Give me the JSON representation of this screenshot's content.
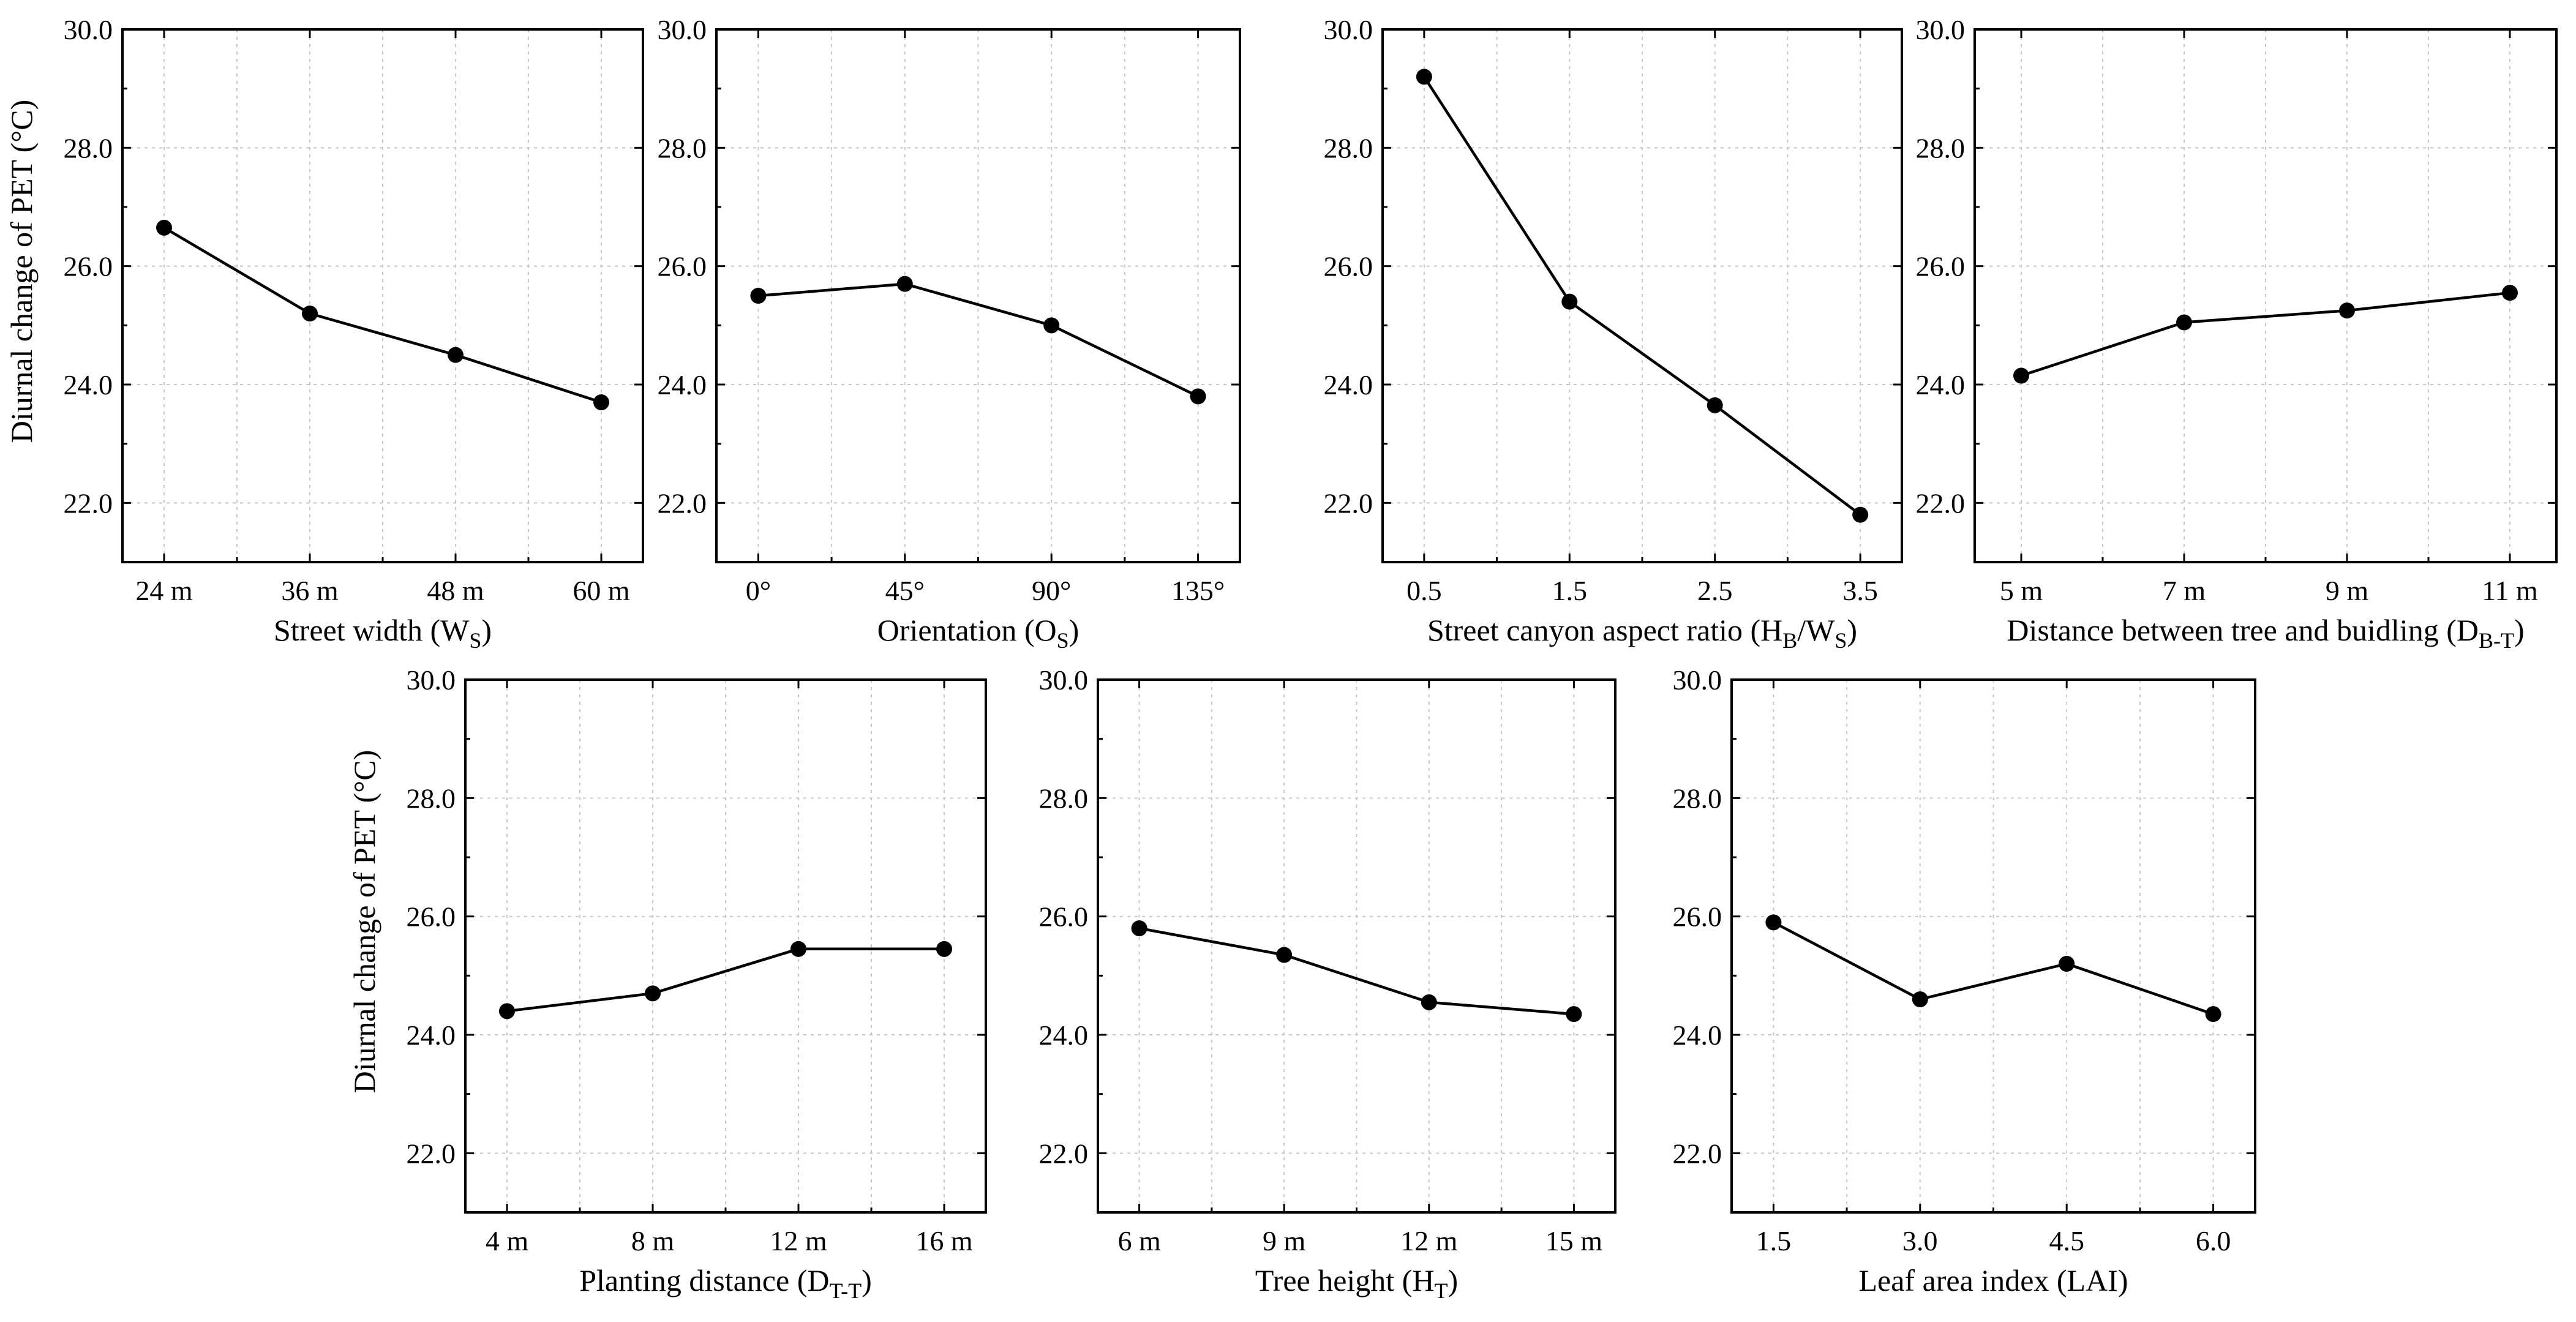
{
  "chart_data": [
    {
      "type": "line",
      "ylabel": "Diurnal change of PET (°C)",
      "xlabel": "Street width (W",
      "xlabel_sub": "S",
      "xlabel_end": ")",
      "categories": [
        "24 m",
        "36 m",
        "48 m",
        "60 m"
      ],
      "values": [
        26.65,
        25.2,
        24.5,
        23.7
      ],
      "ylim": [
        21.0,
        30.0
      ],
      "yticks": [
        "22.0",
        "24.0",
        "26.0",
        "28.0",
        "30.0"
      ],
      "grid": true
    },
    {
      "type": "line",
      "ylabel": "",
      "xlabel": "Orientation (O",
      "xlabel_sub": "S",
      "xlabel_end": ")",
      "categories": [
        "0°",
        "45°",
        "90°",
        "135°"
      ],
      "values": [
        25.5,
        25.7,
        25.0,
        23.8
      ],
      "ylim": [
        21.0,
        30.0
      ],
      "yticks": [
        "22.0",
        "24.0",
        "26.0",
        "28.0",
        "30.0"
      ],
      "grid": true
    },
    {
      "type": "line",
      "ylabel": "",
      "xlabel": "Street canyon aspect ratio (H",
      "xlabel_sub": "B",
      "xlabel_mid": "/W",
      "xlabel_sub2": "S",
      "xlabel_end": ")",
      "categories": [
        "0.5",
        "1.5",
        "2.5",
        "3.5"
      ],
      "values": [
        29.2,
        25.4,
        23.65,
        21.8
      ],
      "ylim": [
        21.0,
        30.0
      ],
      "yticks": [
        "22.0",
        "24.0",
        "26.0",
        "28.0",
        "30.0"
      ],
      "grid": true
    },
    {
      "type": "line",
      "ylabel": "",
      "xlabel": "Distance between tree and buidling (D",
      "xlabel_sub": "B-T",
      "xlabel_end": ")",
      "categories": [
        "5 m",
        "7 m",
        "9 m",
        "11 m"
      ],
      "values": [
        24.15,
        25.05,
        25.25,
        25.55
      ],
      "ylim": [
        21.0,
        30.0
      ],
      "yticks": [
        "22.0",
        "24.0",
        "26.0",
        "28.0",
        "30.0"
      ],
      "grid": true
    },
    {
      "type": "line",
      "ylabel": "Diurnal change of PET (°C)",
      "xlabel": "Planting distance (D",
      "xlabel_sub": "T-T",
      "xlabel_end": ")",
      "categories": [
        "4 m",
        "8 m",
        "12 m",
        "16 m"
      ],
      "values": [
        24.4,
        24.7,
        25.45,
        25.45
      ],
      "ylim": [
        21.0,
        30.0
      ],
      "yticks": [
        "22.0",
        "24.0",
        "26.0",
        "28.0",
        "30.0"
      ],
      "grid": true
    },
    {
      "type": "line",
      "ylabel": "",
      "xlabel": "Tree height (H",
      "xlabel_sub": "T",
      "xlabel_end": ")",
      "categories": [
        "6 m",
        "9 m",
        "12 m",
        "15 m"
      ],
      "values": [
        25.8,
        25.35,
        24.55,
        24.35
      ],
      "ylim": [
        21.0,
        30.0
      ],
      "yticks": [
        "22.0",
        "24.0",
        "26.0",
        "28.0",
        "30.0"
      ],
      "grid": true
    },
    {
      "type": "line",
      "ylabel": "",
      "xlabel": "Leaf area index (LAI)",
      "categories": [
        "1.5",
        "3.0",
        "4.5",
        "6.0"
      ],
      "values": [
        25.9,
        24.6,
        25.2,
        24.35
      ],
      "ylim": [
        21.0,
        30.0
      ],
      "yticks": [
        "22.0",
        "24.0",
        "26.0",
        "28.0",
        "30.0"
      ],
      "grid": true
    }
  ]
}
